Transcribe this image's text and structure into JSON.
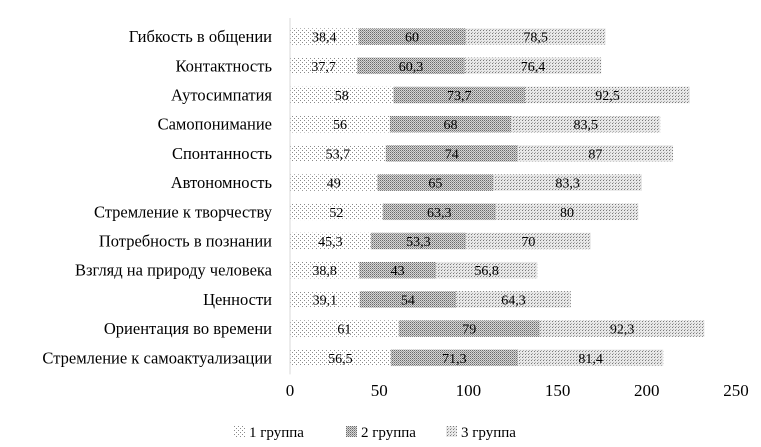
{
  "chart_data": {
    "type": "bar",
    "orientation": "horizontal",
    "stacked": true,
    "categories": [
      "Гибкость в общении",
      "Контактность",
      "Аутосимпатия",
      "Самопонимание",
      "Спонтанность",
      "Автономность",
      "Стремление к творчеству",
      "Потребность в познании",
      "Взгляд на природу человека",
      "Ценности",
      "Ориентация во времени",
      "Стремление к самоактуализации"
    ],
    "series": [
      {
        "name": "1 группа",
        "values": [
          38.4,
          37.7,
          58,
          56,
          53.7,
          49,
          52,
          45.3,
          38.8,
          39.1,
          61,
          56.5
        ],
        "labels": [
          "38,4",
          "37,7",
          "58",
          "56",
          "53,7",
          "49",
          "52",
          "45,3",
          "38,8",
          "39,1",
          "61",
          "56,5"
        ],
        "pattern": "light-dots"
      },
      {
        "name": "2 группа",
        "values": [
          60,
          60.3,
          73.7,
          68,
          74,
          65,
          63.3,
          53.3,
          43,
          54,
          79,
          71.3
        ],
        "labels": [
          "60",
          "60,3",
          "73,7",
          "68",
          "74",
          "65",
          "63,3",
          "53,3",
          "43",
          "54",
          "79",
          "71,3"
        ],
        "pattern": "dense-dots"
      },
      {
        "name": "3 группа",
        "values": [
          78.5,
          76.4,
          92.5,
          83.5,
          87,
          83.3,
          80,
          70,
          56.8,
          64.3,
          92.3,
          81.4
        ],
        "labels": [
          "78,5",
          "76,4",
          "92,5",
          "83,5",
          "87",
          "83,3",
          "80",
          "70",
          "56,8",
          "64,3",
          "92,3",
          "81,4"
        ],
        "pattern": "medium-dots"
      }
    ],
    "xlim": [
      0,
      250
    ],
    "xticks": [
      "0",
      "50",
      "100",
      "150",
      "200",
      "250"
    ],
    "grid": false,
    "legend_position": "bottom"
  }
}
